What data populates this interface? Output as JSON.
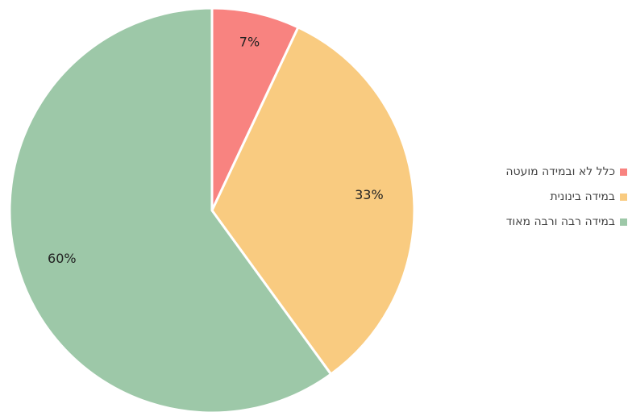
{
  "chart_data": {
    "type": "pie",
    "categories": [
      "כלל לא ובמידה מועטה",
      "במידה בינונית",
      "במידה רבה ורבה מאוד"
    ],
    "values": [
      7,
      33,
      60
    ],
    "labels": [
      "7%",
      "33%",
      "60%"
    ],
    "colors": [
      "#f88380",
      "#f9cb80",
      "#9dc8a8"
    ],
    "legend_position": "right",
    "start_angle": "12 o'clock",
    "direction": "clockwise"
  },
  "legend": {
    "items": [
      {
        "label": "כלל לא ובמידה מועטה",
        "color": "#f88380"
      },
      {
        "label": "במידה בינונית",
        "color": "#f9cb80"
      },
      {
        "label": "במידה רבה ורבה מאוד",
        "color": "#9dc8a8"
      }
    ]
  }
}
